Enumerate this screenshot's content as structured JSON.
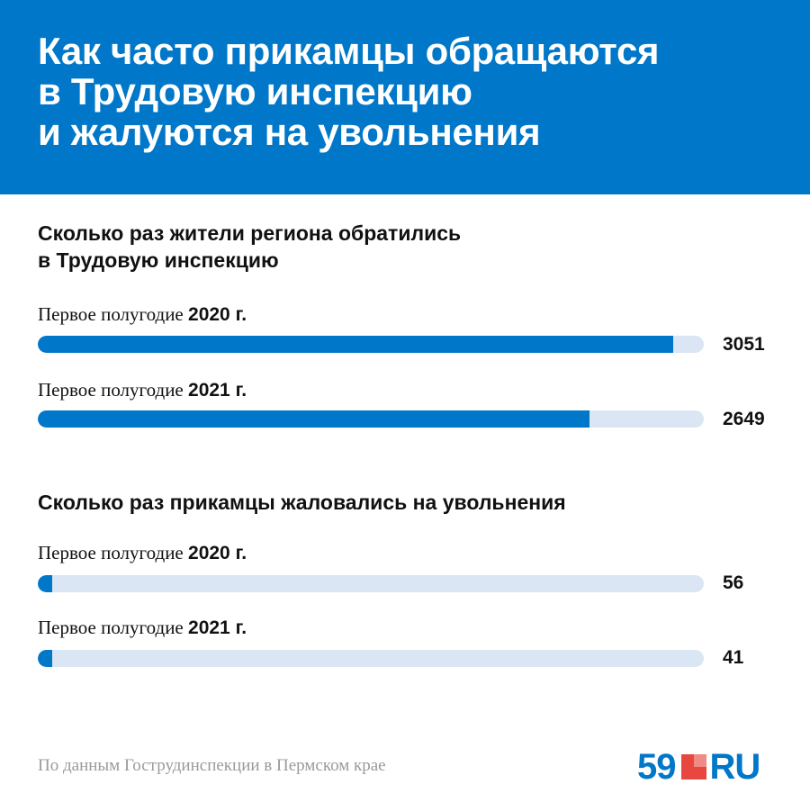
{
  "header": {
    "title": "Как часто прикамцы обращаются\nв Трудовую инспекцию\nи жалуются на увольнения",
    "background": "#0077c8"
  },
  "chart_data": [
    {
      "type": "bar",
      "title": "Сколько раз жители региона обратились\nв Трудовую инспекцию",
      "max": 3200,
      "bars": [
        {
          "label_prefix": "Первое полугодие",
          "label_bold": "2020 г.",
          "value": 3051,
          "value_label": "3051"
        },
        {
          "label_prefix": "Первое полугодие",
          "label_bold": "2021 г.",
          "value": 2649,
          "value_label": "2649"
        }
      ]
    },
    {
      "type": "bar",
      "title": "Сколько раз прикамцы жаловались на увольнения",
      "max": 3200,
      "bars": [
        {
          "label_prefix": "Первое полугодие",
          "label_bold": "2020 г.",
          "value": 56,
          "value_label": "56"
        },
        {
          "label_prefix": "Первое полугодие",
          "label_bold": "2021 г.",
          "value": 41,
          "value_label": "41"
        }
      ]
    }
  ],
  "colors": {
    "bar_fill": "#0077c8",
    "bar_track": "#dae6f3",
    "source_text": "#9a9a9a"
  },
  "footer": {
    "source": "По данным Гострудинспекции в Пермском крае",
    "logo_number": "59",
    "logo_suffix": "RU"
  }
}
